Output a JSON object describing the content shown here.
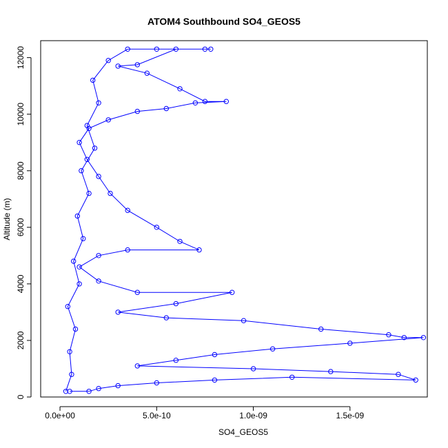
{
  "chart_data": {
    "type": "line",
    "title": "ATOM4 Southbound SO4_GEOS5",
    "xlabel": "SO4_GEOS5",
    "ylabel": "Altitude (m)",
    "xlim": [
      -1e-10,
      1.9e-09
    ],
    "ylim": [
      0,
      12600
    ],
    "x_ticks": [
      0,
      5e-10,
      1e-09,
      1.5e-09
    ],
    "x_tick_labels": [
      "0.0e+00",
      "5.0e-10",
      "1.0e-09",
      "1.5e-09"
    ],
    "y_ticks": [
      0,
      2000,
      4000,
      6000,
      8000,
      10000,
      12000
    ],
    "y_tick_labels": [
      "0",
      "2000",
      "4000",
      "6000",
      "8000",
      "10000",
      "12000"
    ],
    "marker": "open-circle",
    "series_color": "#0000ff",
    "series": [
      {
        "name": "profile",
        "points": [
          [
            3e-11,
            200
          ],
          [
            6e-11,
            800
          ],
          [
            5e-11,
            1600
          ],
          [
            8e-11,
            2400
          ],
          [
            4e-11,
            3200
          ],
          [
            1e-10,
            4000
          ],
          [
            7e-11,
            4800
          ],
          [
            1.2e-10,
            5600
          ],
          [
            9e-11,
            6400
          ],
          [
            1.5e-10,
            7200
          ],
          [
            1.1e-10,
            8000
          ],
          [
            1.8e-10,
            8800
          ],
          [
            1.4e-10,
            9600
          ],
          [
            2e-10,
            10400
          ],
          [
            1.7e-10,
            11200
          ],
          [
            2.5e-10,
            11900
          ],
          [
            3.5e-10,
            12300
          ],
          [
            5e-10,
            12300
          ],
          [
            7.5e-10,
            12300
          ],
          [
            7.8e-10,
            12300
          ],
          [
            6e-10,
            12300
          ],
          [
            4e-10,
            11750
          ],
          [
            3e-10,
            11700
          ],
          [
            4.5e-10,
            11450
          ],
          [
            6.2e-10,
            10900
          ],
          [
            7.5e-10,
            10450
          ],
          [
            8.6e-10,
            10450
          ],
          [
            7e-10,
            10400
          ],
          [
            5.5e-10,
            10200
          ],
          [
            4e-10,
            10100
          ],
          [
            2.5e-10,
            9800
          ],
          [
            1.5e-10,
            9500
          ],
          [
            1e-10,
            9000
          ],
          [
            1.4e-10,
            8400
          ],
          [
            2e-10,
            7800
          ],
          [
            2.6e-10,
            7200
          ],
          [
            3.5e-10,
            6600
          ],
          [
            5e-10,
            6000
          ],
          [
            6.2e-10,
            5500
          ],
          [
            7.2e-10,
            5200
          ],
          [
            3.5e-10,
            5200
          ],
          [
            2e-10,
            5000
          ],
          [
            1e-10,
            4600
          ],
          [
            2e-10,
            4100
          ],
          [
            4e-10,
            3700
          ],
          [
            8.9e-10,
            3700
          ],
          [
            6e-10,
            3300
          ],
          [
            3e-10,
            3000
          ],
          [
            5.5e-10,
            2800
          ],
          [
            9.5e-10,
            2700
          ],
          [
            1.35e-09,
            2400
          ],
          [
            1.7e-09,
            2200
          ],
          [
            1.78e-09,
            2100
          ],
          [
            1.88e-09,
            2100
          ],
          [
            1.5e-09,
            1900
          ],
          [
            1.1e-09,
            1700
          ],
          [
            8e-10,
            1500
          ],
          [
            6e-10,
            1300
          ],
          [
            4e-10,
            1100
          ],
          [
            1e-09,
            1000
          ],
          [
            1.4e-09,
            900
          ],
          [
            1.75e-09,
            800
          ],
          [
            1.84e-09,
            600
          ],
          [
            1.2e-09,
            700
          ],
          [
            8e-10,
            600
          ],
          [
            5e-10,
            500
          ],
          [
            3e-10,
            400
          ],
          [
            2e-10,
            300
          ],
          [
            1.5e-10,
            200
          ],
          [
            5e-11,
            200
          ]
        ]
      }
    ]
  }
}
